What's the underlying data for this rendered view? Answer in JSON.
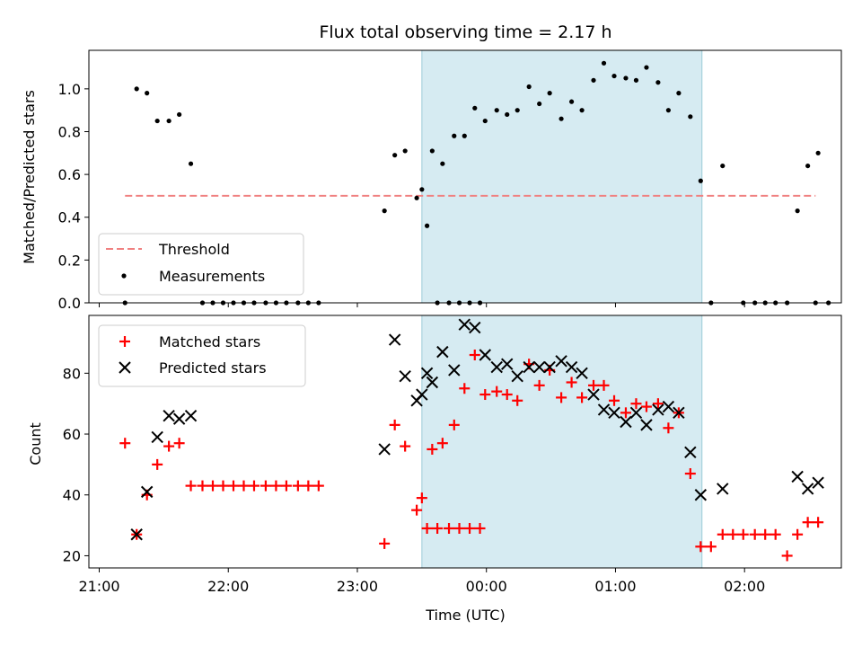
{
  "chart_data": [
    {
      "type": "scatter",
      "title": "Flux total observing time = 2.17 h",
      "ylabel": "Matched/Predicted stars",
      "xlabel": "",
      "x_unit": "hours since 21:00 UTC on the first night",
      "xlim": [
        -0.08,
        5.75
      ],
      "ylim": [
        0,
        1.18
      ],
      "yticks": [
        0.0,
        0.2,
        0.4,
        0.6,
        0.8,
        1.0
      ],
      "ytick_labels": [
        "0.0",
        "0.2",
        "0.4",
        "0.6",
        "0.8",
        "1.0"
      ],
      "highlight_span": {
        "x0": 2.5,
        "x1": 4.67,
        "color": "#add8e6"
      },
      "threshold": {
        "name": "Threshold",
        "value": 0.5,
        "x0": 0.2,
        "x1": 5.55,
        "color": "#f08080",
        "style": "dashed"
      },
      "series": [
        {
          "name": "Measurements",
          "marker": "dot",
          "color": "#000000",
          "x": [
            0.2,
            0.29,
            0.37,
            0.45,
            0.54,
            0.62,
            0.71,
            0.8,
            0.88,
            0.96,
            1.04,
            1.12,
            1.2,
            1.29,
            1.37,
            1.45,
            1.54,
            1.62,
            1.7,
            2.21,
            2.29,
            2.37,
            2.46,
            2.54,
            2.62,
            2.71,
            2.79,
            2.87,
            2.95,
            2.5,
            2.58,
            2.66,
            2.75,
            2.83,
            2.91,
            2.99,
            3.08,
            3.16,
            3.24,
            3.33,
            3.41,
            3.49,
            3.58,
            3.66,
            3.74,
            3.83,
            3.91,
            3.99,
            4.08,
            4.16,
            4.24,
            4.33,
            4.41,
            4.49,
            4.58,
            4.66,
            4.74,
            4.83,
            4.99,
            5.08,
            5.16,
            5.24,
            5.33,
            5.41,
            5.49,
            5.57,
            5.65,
            5.55
          ],
          "y": [
            0.0,
            1.0,
            0.98,
            0.85,
            0.85,
            0.88,
            0.65,
            0.0,
            0.0,
            0.0,
            0.0,
            0.0,
            0.0,
            0.0,
            0.0,
            0.0,
            0.0,
            0.0,
            0.0,
            0.43,
            0.69,
            0.71,
            0.49,
            0.36,
            0.0,
            0.0,
            0.0,
            0.0,
            0.0,
            0.53,
            0.71,
            0.65,
            0.78,
            0.78,
            0.91,
            0.85,
            0.9,
            0.88,
            0.9,
            1.01,
            0.93,
            0.98,
            0.86,
            0.94,
            0.9,
            1.04,
            1.12,
            1.06,
            1.05,
            1.04,
            1.1,
            1.03,
            0.9,
            0.98,
            0.87,
            0.57,
            0.0,
            0.64,
            0.0,
            0.0,
            0.0,
            0.0,
            0.0,
            0.43,
            0.64,
            0.7,
            0.0,
            0.0
          ]
        }
      ],
      "legend": {
        "position": "lower left",
        "entries": [
          "Threshold",
          "Measurements"
        ]
      }
    },
    {
      "type": "scatter",
      "title": "",
      "ylabel": "Count",
      "xlabel": "Time (UTC)",
      "x_unit": "hours since 21:00 UTC on the first night",
      "xlim": [
        -0.08,
        5.75
      ],
      "ylim": [
        16,
        99
      ],
      "xticks": [
        0,
        1,
        2,
        3,
        4,
        5
      ],
      "xtick_labels": [
        "21:00",
        "22:00",
        "23:00",
        "00:00",
        "01:00",
        "02:00"
      ],
      "yticks": [
        20,
        40,
        60,
        80
      ],
      "ytick_labels": [
        "20",
        "40",
        "60",
        "80"
      ],
      "highlight_span": {
        "x0": 2.5,
        "x1": 4.67,
        "color": "#add8e6"
      },
      "series": [
        {
          "name": "Matched stars",
          "marker": "plus",
          "color": "#ff0000",
          "x": [
            0.2,
            0.29,
            0.37,
            0.45,
            0.54,
            0.62,
            0.71,
            0.8,
            0.88,
            0.96,
            1.04,
            1.12,
            1.2,
            1.29,
            1.37,
            1.45,
            1.54,
            1.62,
            1.7,
            2.21,
            2.29,
            2.37,
            2.46,
            2.54,
            2.62,
            2.71,
            2.79,
            2.87,
            2.95,
            2.5,
            2.58,
            2.66,
            2.75,
            2.83,
            2.91,
            2.99,
            3.08,
            3.16,
            3.24,
            3.33,
            3.41,
            3.49,
            3.58,
            3.66,
            3.74,
            3.83,
            3.91,
            3.99,
            4.08,
            4.16,
            4.24,
            4.33,
            4.41,
            4.49,
            4.58,
            4.66,
            4.74,
            4.83,
            4.91,
            4.99,
            5.08,
            5.16,
            5.24,
            5.33,
            5.41,
            5.49,
            5.57
          ],
          "y": [
            57,
            27,
            40,
            50,
            56,
            57,
            43,
            43,
            43,
            43,
            43,
            43,
            43,
            43,
            43,
            43,
            43,
            43,
            43,
            24,
            63,
            56,
            35,
            29,
            29,
            29,
            29,
            29,
            29,
            39,
            55,
            57,
            63,
            75,
            86,
            73,
            74,
            73,
            71,
            83,
            76,
            81,
            72,
            77,
            72,
            76,
            76,
            71,
            67,
            70,
            69,
            70,
            62,
            67,
            47,
            23,
            23,
            27,
            27,
            27,
            27,
            27,
            27,
            20,
            27,
            31,
            31
          ]
        },
        {
          "name": "Predicted stars",
          "marker": "x",
          "color": "#000000",
          "x": [
            0.29,
            0.37,
            0.45,
            0.54,
            0.62,
            0.71,
            2.21,
            2.29,
            2.37,
            2.46,
            2.54,
            2.5,
            2.58,
            2.66,
            2.75,
            2.83,
            2.91,
            2.99,
            3.08,
            3.16,
            3.24,
            3.33,
            3.41,
            3.49,
            3.58,
            3.66,
            3.74,
            3.83,
            3.91,
            3.99,
            4.08,
            4.16,
            4.24,
            4.33,
            4.41,
            4.49,
            4.58,
            4.66,
            4.83,
            5.41,
            5.49,
            5.57
          ],
          "y": [
            27,
            41,
            59,
            66,
            65,
            66,
            55,
            91,
            79,
            71,
            80,
            73,
            77,
            87,
            81,
            96,
            95,
            86,
            82,
            83,
            79,
            82,
            82,
            82,
            84,
            82,
            80,
            73,
            68,
            67,
            64,
            67,
            63,
            68,
            69,
            67,
            54,
            40,
            42,
            46,
            42,
            44
          ]
        }
      ],
      "legend": {
        "position": "upper left",
        "entries": [
          "Matched stars",
          "Predicted stars"
        ]
      }
    }
  ]
}
